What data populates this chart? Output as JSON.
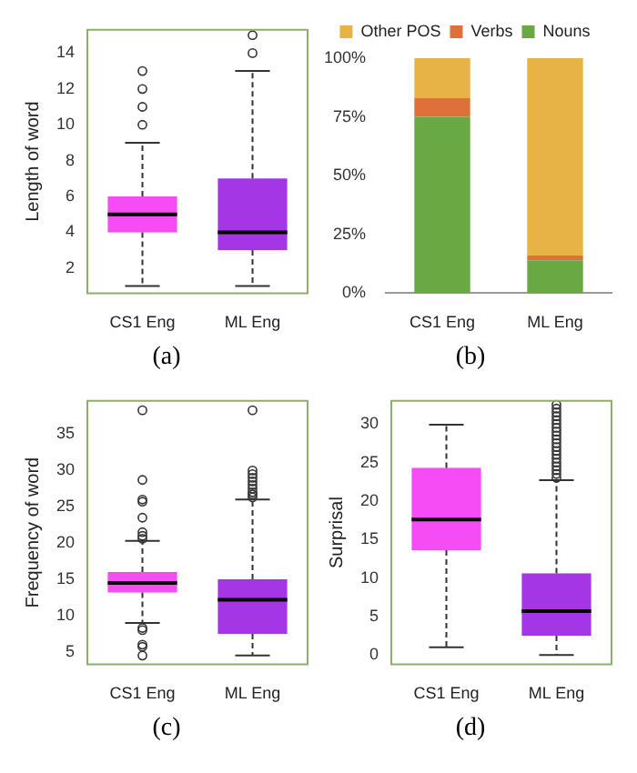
{
  "chart_data": [
    {
      "type": "box",
      "ylabel": "Length of word",
      "categories": [
        "CS1 Eng",
        "ML Eng"
      ],
      "colors": [
        "#f54cf5",
        "#a536e6"
      ],
      "ylim": [
        0.6,
        15.3
      ],
      "yticks": [
        2,
        4,
        6,
        8,
        10,
        12,
        14
      ],
      "boxes": [
        {
          "low": 1,
          "q1": 4,
          "median": 5,
          "q3": 6,
          "high": 9,
          "outliers": [
            10,
            11,
            12,
            13
          ]
        },
        {
          "low": 1,
          "q1": 3,
          "median": 4,
          "q3": 7,
          "high": 13,
          "outliers": [
            14,
            15
          ]
        }
      ],
      "annotations": [
        "(a)"
      ],
      "grid": false,
      "legend": false
    },
    {
      "type": "bar",
      "stacked": true,
      "categories": [
        "CS1 Eng",
        "ML Eng"
      ],
      "ylim": [
        0,
        100
      ],
      "yticks": [
        {
          "value": 0,
          "label": "0%"
        },
        {
          "value": 25,
          "label": "25%"
        },
        {
          "value": 50,
          "label": "50%"
        },
        {
          "value": 75,
          "label": "75%"
        },
        {
          "value": 100,
          "label": "100%"
        }
      ],
      "series": [
        {
          "name": "Nouns",
          "color": "#6aa843",
          "values": [
            75,
            14
          ]
        },
        {
          "name": "Verbs",
          "color": "#e0703a",
          "values": [
            8,
            2
          ]
        },
        {
          "name": "Other POS",
          "color": "#e8b346",
          "values": [
            17,
            84
          ]
        }
      ],
      "legend": "top",
      "grid": false,
      "annotations": [
        "(b)"
      ]
    },
    {
      "type": "box",
      "ylabel": "Frequency of word",
      "categories": [
        "CS1 Eng",
        "ML Eng"
      ],
      "colors": [
        "#f54cf5",
        "#a536e6"
      ],
      "ylim": [
        3.3,
        39.6
      ],
      "yticks": [
        5,
        10,
        15,
        20,
        25,
        30,
        35
      ],
      "boxes": [
        {
          "low": 9,
          "q1": 13.2,
          "median": 14.5,
          "q3": 16,
          "high": 20.3,
          "outliers": [
            4.5,
            5.7,
            6,
            8,
            8.3,
            20.6,
            21,
            21.5,
            23.5,
            25.7,
            26,
            28.7,
            38.3
          ]
        },
        {
          "low": 4.5,
          "q1": 7.5,
          "median": 12.2,
          "q3": 15,
          "high": 26,
          "outliers": [
            26.3,
            26.7,
            27,
            27.5,
            28,
            28.5,
            29,
            29.5,
            30,
            38.3
          ]
        }
      ],
      "annotations": [
        "(c)"
      ],
      "grid": false,
      "legend": false
    },
    {
      "type": "box",
      "ylabel": "Surprisal",
      "categories": [
        "CS1 Eng",
        "ML Eng"
      ],
      "colors": [
        "#f54cf5",
        "#a536e6"
      ],
      "ylim": [
        -1.2,
        33
      ],
      "yticks": [
        0,
        5,
        10,
        15,
        20,
        25,
        30
      ],
      "boxes": [
        {
          "low": 1,
          "q1": 13.6,
          "median": 17.6,
          "q3": 24.3,
          "high": 29.9
        },
        {
          "low": 0,
          "q1": 2.5,
          "median": 5.7,
          "q3": 10.6,
          "high": 22.7,
          "outliers": [
            23,
            23.5,
            24,
            24.5,
            25,
            25.5,
            26,
            26.5,
            27,
            27.5,
            28,
            28.5,
            29,
            29.5,
            30,
            30.5,
            31,
            31.5,
            32,
            32.5
          ]
        }
      ],
      "annotations": [
        "(d)"
      ],
      "grid": false,
      "legend": false
    }
  ]
}
